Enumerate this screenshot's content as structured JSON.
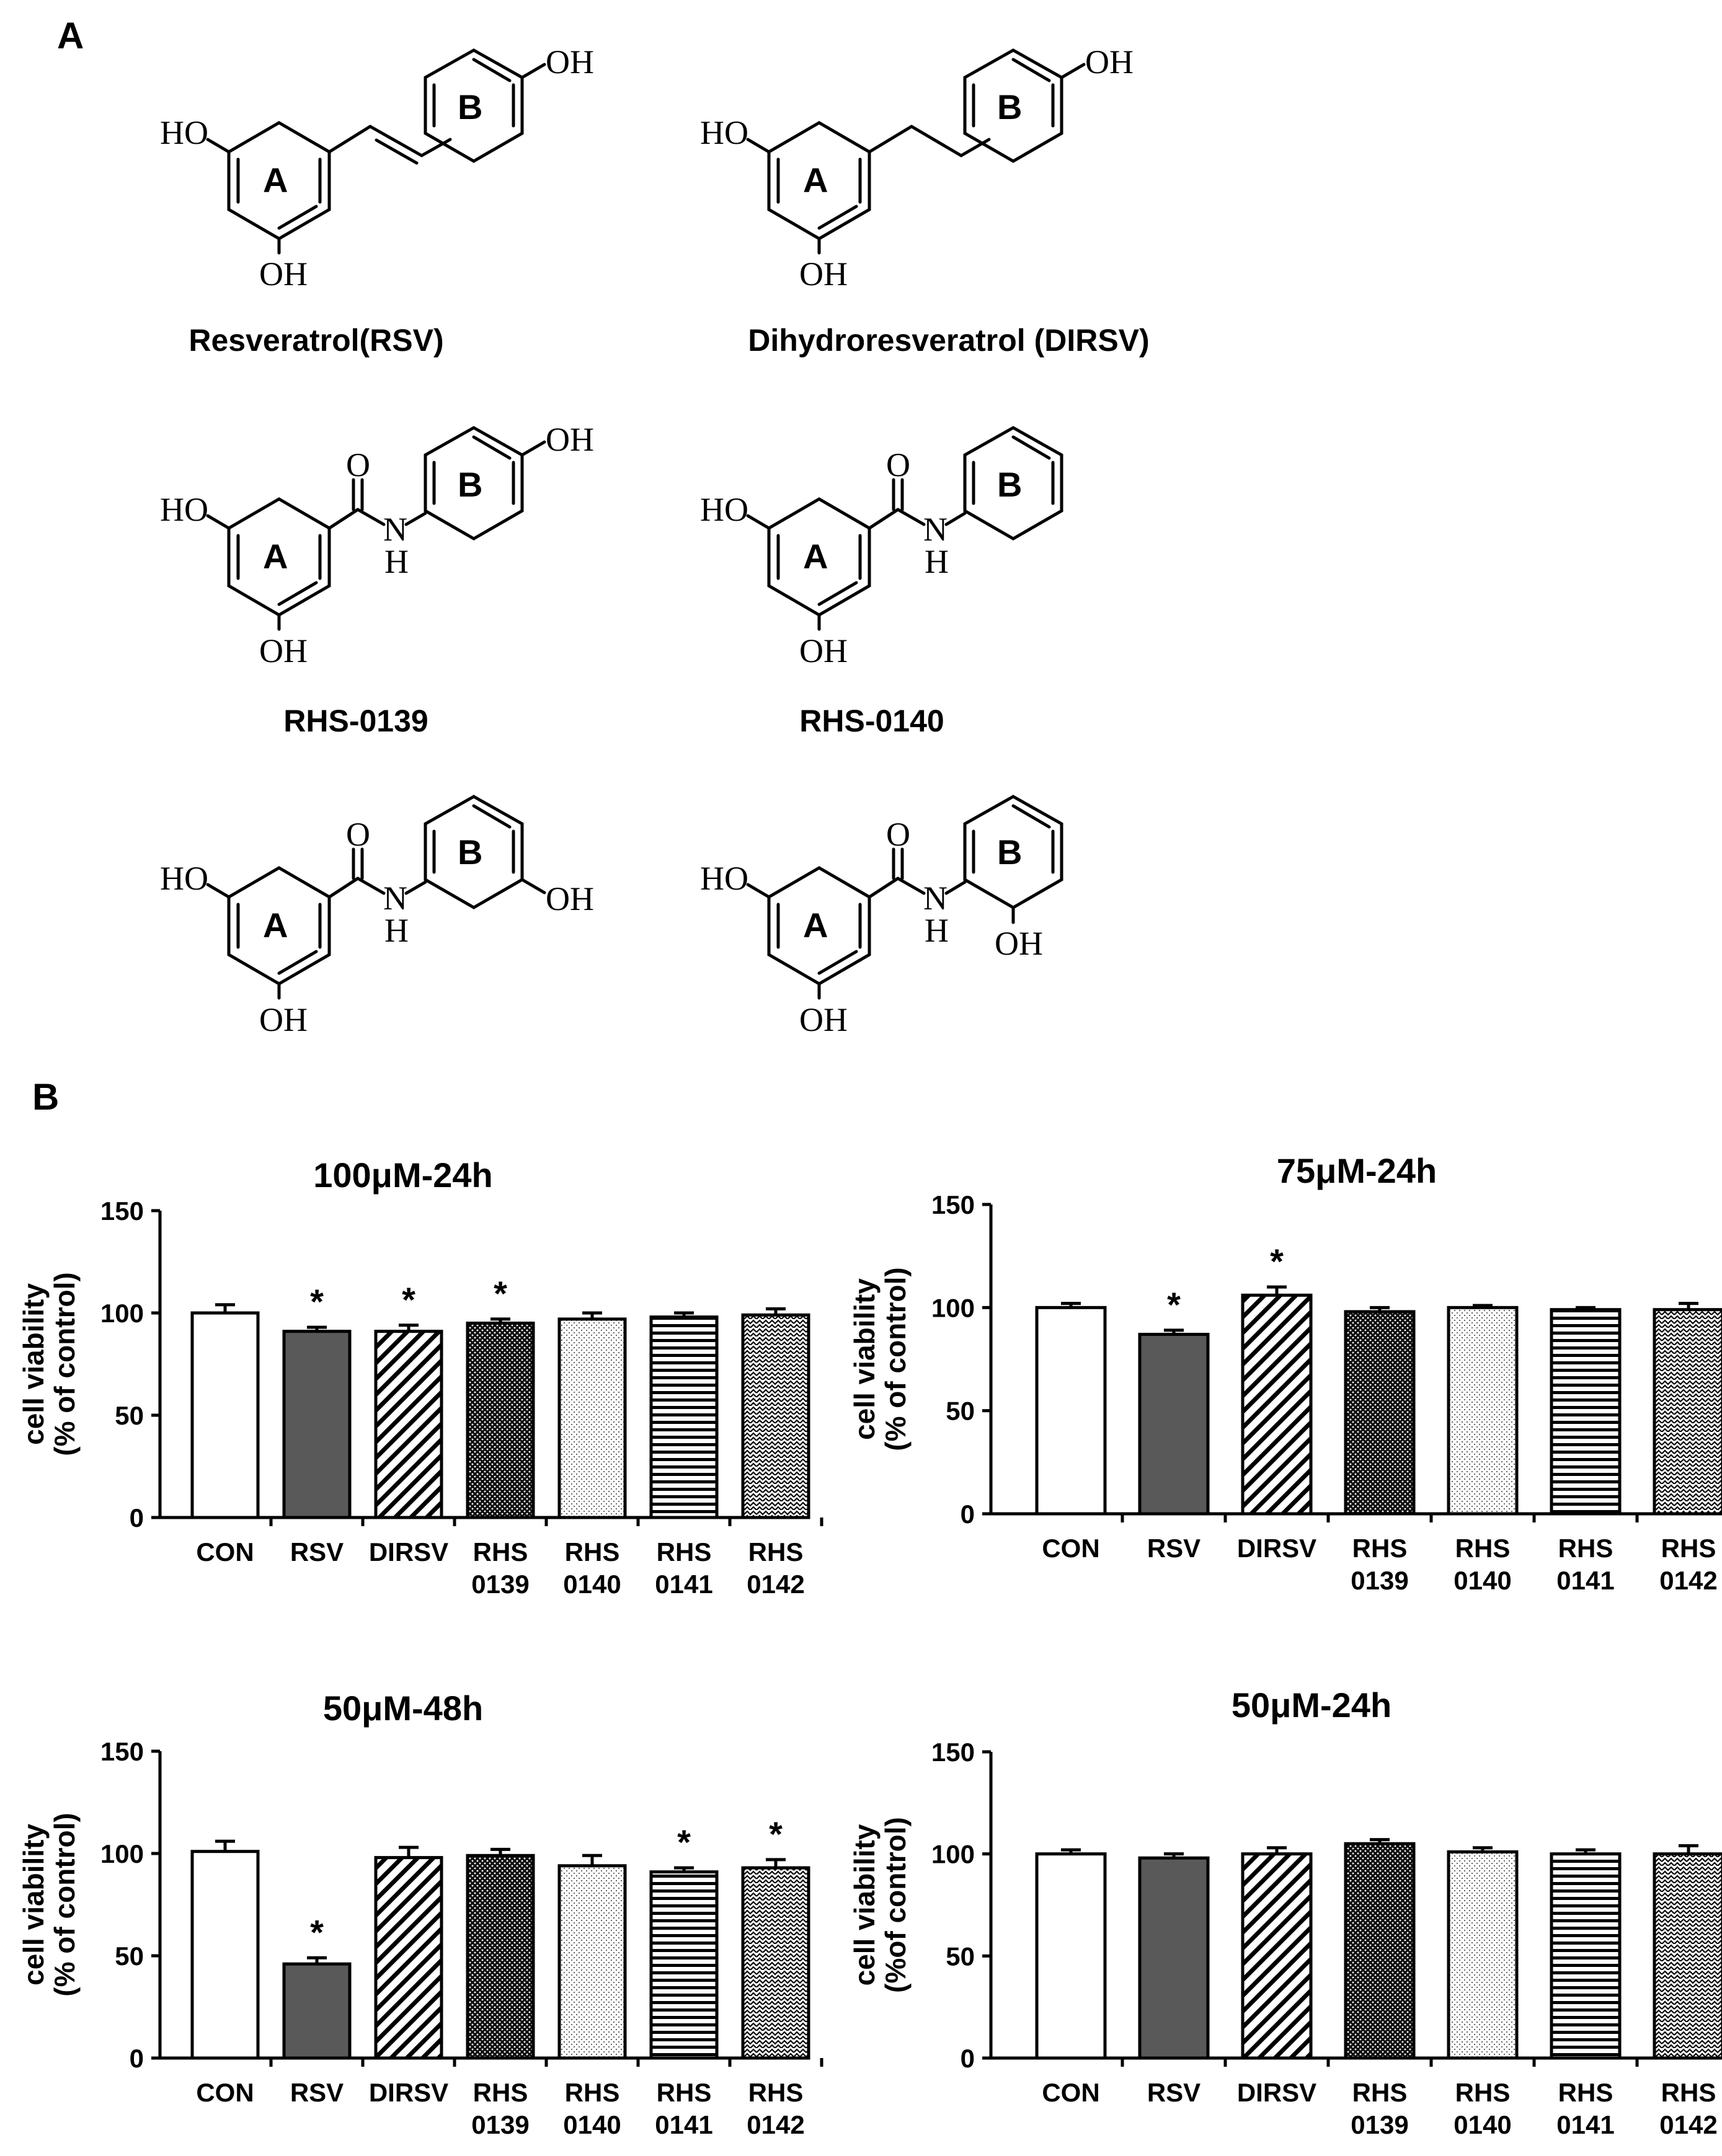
{
  "panel_a": {
    "label": "A",
    "compounds": [
      {
        "name": "Resveratrol(RSV)"
      },
      {
        "name": "Dihydroresveratrol (DIRSV)"
      },
      {
        "name": "RHS-0139"
      },
      {
        "name": "RHS-0140"
      },
      {
        "name": ""
      },
      {
        "name": ""
      }
    ],
    "atoms": {
      "oh": "OH",
      "ho": "HO",
      "o": "O",
      "n": "N",
      "h": "H",
      "ring_a": "A",
      "ring_b": "B"
    }
  },
  "panel_b": {
    "label": "B"
  },
  "colors": {
    "con": "#ffffff",
    "rsv": "#595959",
    "stroke": "#000000"
  },
  "chart_data": [
    {
      "type": "bar",
      "title": "100μM-24h",
      "ylabel": [
        "cell viability",
        "(% of control)"
      ],
      "ylim": [
        0,
        150
      ],
      "yticks": [
        0,
        50,
        100,
        150
      ],
      "categories": [
        [
          "CON"
        ],
        [
          "RSV"
        ],
        [
          "DIRSV"
        ],
        [
          "RHS",
          "0139"
        ],
        [
          "RHS",
          "0140"
        ],
        [
          "RHS",
          "0141"
        ],
        [
          "RHS",
          "0142"
        ]
      ],
      "values": [
        100,
        91,
        91,
        95,
        97,
        98,
        99
      ],
      "errors": [
        4,
        2,
        3,
        2,
        3,
        2,
        3
      ],
      "significant": [
        false,
        true,
        true,
        true,
        false,
        false,
        false
      ]
    },
    {
      "type": "bar",
      "title": "75μM-24h",
      "ylabel": [
        "cell viability",
        "(% of control)"
      ],
      "ylim": [
        0,
        150
      ],
      "yticks": [
        0,
        50,
        100,
        150
      ],
      "categories": [
        [
          "CON"
        ],
        [
          "RSV"
        ],
        [
          "DIRSV"
        ],
        [
          "RHS",
          "0139"
        ],
        [
          "RHS",
          "0140"
        ],
        [
          "RHS",
          "0141"
        ],
        [
          "RHS",
          "0142"
        ]
      ],
      "values": [
        100,
        87,
        106,
        98,
        100,
        99,
        99
      ],
      "errors": [
        2,
        2,
        4,
        2,
        1,
        1,
        3
      ],
      "significant": [
        false,
        true,
        true,
        false,
        false,
        false,
        false
      ]
    },
    {
      "type": "bar",
      "title": "50μM-48h",
      "ylabel": [
        "cell viability",
        "(% of control)"
      ],
      "ylim": [
        0,
        150
      ],
      "yticks": [
        0,
        50,
        100,
        150
      ],
      "categories": [
        [
          "CON"
        ],
        [
          "RSV"
        ],
        [
          "DIRSV"
        ],
        [
          "RHS",
          "0139"
        ],
        [
          "RHS",
          "0140"
        ],
        [
          "RHS",
          "0141"
        ],
        [
          "RHS",
          "0142"
        ]
      ],
      "values": [
        101,
        46,
        98,
        99,
        94,
        91,
        93
      ],
      "errors": [
        5,
        3,
        5,
        3,
        5,
        2,
        4
      ],
      "significant": [
        false,
        true,
        false,
        false,
        false,
        true,
        true
      ]
    },
    {
      "type": "bar",
      "title": "50μM-24h",
      "ylabel": [
        "cell viability",
        "(%of control)"
      ],
      "ylim": [
        0,
        150
      ],
      "yticks": [
        0,
        50,
        100,
        150
      ],
      "categories": [
        [
          "CON"
        ],
        [
          "RSV"
        ],
        [
          "DIRSV"
        ],
        [
          "RHS",
          "0139"
        ],
        [
          "RHS",
          "0140"
        ],
        [
          "RHS",
          "0141"
        ],
        [
          "RHS",
          "0142"
        ]
      ],
      "values": [
        100,
        98,
        100,
        105,
        101,
        100,
        100
      ],
      "errors": [
        2,
        2,
        3,
        2,
        2,
        2,
        4
      ],
      "significant": [
        false,
        false,
        false,
        false,
        false,
        false,
        false
      ]
    }
  ]
}
